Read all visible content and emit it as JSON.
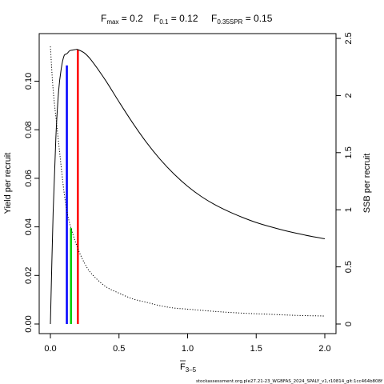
{
  "chart_data": {
    "type": "line",
    "title_parts": [
      {
        "main": "F",
        "sub": "max",
        "rest": " = 0.2"
      },
      {
        "main": "F",
        "sub": "0.1",
        "rest": " = 0.12"
      },
      {
        "main": "F",
        "sub": "0.35SPR",
        "rest": " = 0.15"
      }
    ],
    "xlabel_main": "F",
    "xlabel_sub": "3–5",
    "ylabel_left": "Yield per recruit",
    "ylabel_right": "SSB per recruit",
    "xlim": [
      0,
      2.0
    ],
    "ylim_left": [
      0,
      0.113
    ],
    "ylim_right": [
      0,
      2.5
    ],
    "x_ticks": [
      0,
      0.5,
      1.0,
      1.5,
      2.0
    ],
    "x_tick_labels": [
      "0.0",
      "0.5",
      "1.0",
      "1.5",
      "2.0"
    ],
    "y_left_ticks": [
      0,
      0.02,
      0.04,
      0.06,
      0.08,
      0.1
    ],
    "y_left_tick_labels": [
      "0.00",
      "0.02",
      "0.04",
      "0.06",
      "0.08",
      "0.10"
    ],
    "y_right_ticks": [
      0,
      0.5,
      1.0,
      1.5,
      2.0,
      2.5
    ],
    "y_right_tick_labels": [
      "0",
      "0.5",
      "1",
      "1.5",
      "2",
      "2.5"
    ],
    "series": [
      {
        "axis": "left",
        "style": "solid",
        "x": [
          0,
          0.02,
          0.04,
          0.06,
          0.08,
          0.1,
          0.12,
          0.14,
          0.16,
          0.18,
          0.2,
          0.25,
          0.3,
          0.4,
          0.5,
          0.6,
          0.7,
          0.8,
          0.9,
          1.0,
          1.1,
          1.2,
          1.3,
          1.4,
          1.5,
          1.6,
          1.7,
          1.8,
          1.9,
          2.0
        ],
        "y": [
          0,
          0.046,
          0.077,
          0.096,
          0.1055,
          0.1105,
          0.1113,
          0.1125,
          0.1128,
          0.113,
          0.113,
          0.1115,
          0.1085,
          0.1005,
          0.0915,
          0.0828,
          0.0748,
          0.0678,
          0.0618,
          0.0567,
          0.0525,
          0.0491,
          0.0463,
          0.0439,
          0.0418,
          0.0401,
          0.0386,
          0.0373,
          0.0361,
          0.0351
        ]
      },
      {
        "axis": "right",
        "style": "dotted",
        "x": [
          0,
          0.02,
          0.05,
          0.08,
          0.1,
          0.12,
          0.15,
          0.2,
          0.25,
          0.3,
          0.4,
          0.5,
          0.6,
          0.7,
          0.8,
          0.9,
          1.0,
          1.2,
          1.4,
          1.6,
          1.8,
          2.0
        ],
        "y": [
          2.43,
          2.05,
          1.7,
          1.36,
          1.15,
          0.99,
          0.84,
          0.66,
          0.53,
          0.44,
          0.33,
          0.27,
          0.22,
          0.19,
          0.16,
          0.14,
          0.13,
          0.11,
          0.095,
          0.085,
          0.075,
          0.07
        ]
      }
    ],
    "reference_lines": [
      {
        "x": 0.12,
        "y_top": 0.1065,
        "color": "#0000ff"
      },
      {
        "x": 0.15,
        "y_top": 0.0395,
        "color": "#00cc00"
      },
      {
        "x": 0.2,
        "y_top": 0.113,
        "color": "#ff0000"
      }
    ]
  },
  "footer": "stockassessment.org,ple27.21-23_WGBFAS_2024_SPALY_v1,r10814_git:1cc464b808f"
}
